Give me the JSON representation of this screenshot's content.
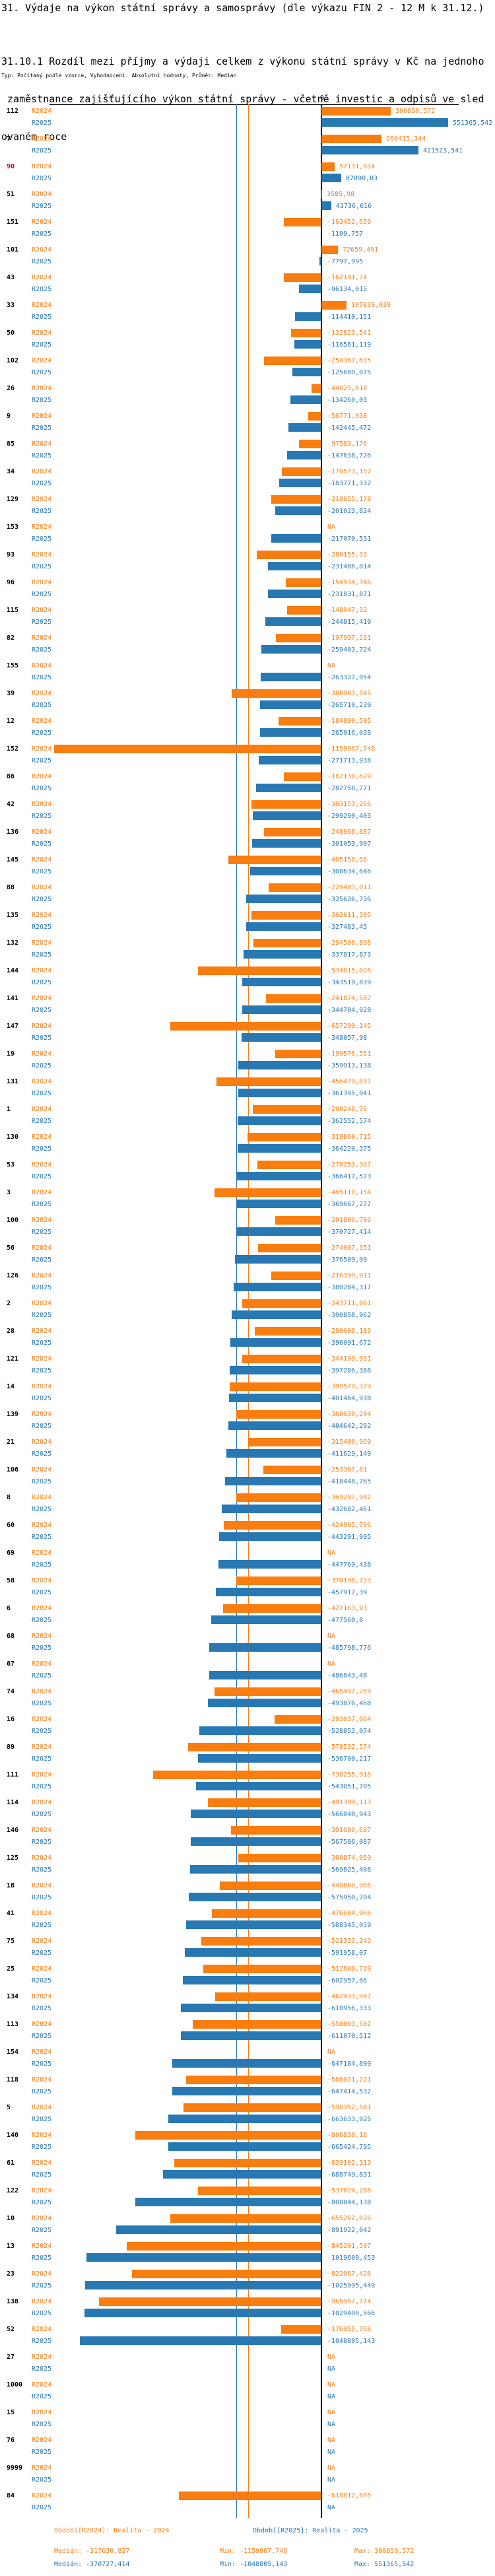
{
  "header": {
    "title": "31. Výdaje na výkon státní správy a samosprávy (dle výkazu FIN 2 - 12 M k 31.12.)",
    "subtitle_lines": [
      "31.10.1 Rozdíl mezi příjmy a výdaji celkem z výkonu státní správy v Kč na jednoho",
      " zaměstnance zajišťujícího výkon státní správy - včetně investic a odpisů ve sled",
      "ovaném roce"
    ],
    "type_line": "Typ: Počítaný podle vzorce, Vyhodnocení: Absolutní hodnoty, Průměr: Medián"
  },
  "chart_data": {
    "type": "bar",
    "orientation": "horizontal",
    "zero_tick_label": "0",
    "series": [
      {
        "name": "R2024",
        "color": "#fa7d10"
      },
      {
        "name": "R2025",
        "color": "#2878b4"
      }
    ],
    "highlight_color": "#e00000",
    "groups": [
      {
        "id": "112",
        "r2024": "300850,572",
        "r2025": "551365,542"
      },
      {
        "id": "7",
        "r2024": "260415,344",
        "r2025": "421523,541"
      },
      {
        "id": "90",
        "hl": true,
        "r2024": "57131,934",
        "r2025": "87090,83"
      },
      {
        "id": "51",
        "r2024": "3585,98",
        "r2025": "43736,616"
      },
      {
        "id": "151",
        "r2024": "-163452,659",
        "r2025": "-1109,757"
      },
      {
        "id": "101",
        "r2024": "72659,491",
        "r2025": "-7797,995"
      },
      {
        "id": "43",
        "r2024": "-162191,74",
        "r2025": "-96134,015"
      },
      {
        "id": "33",
        "r2024": "107839,039",
        "r2025": "-114410,151"
      },
      {
        "id": "50",
        "r2024": "-132823,541",
        "r2025": "-116561,119"
      },
      {
        "id": "102",
        "r2024": "-250367,635",
        "r2025": "-125680,075"
      },
      {
        "id": "26",
        "r2024": "-44025,618",
        "r2025": "-134260,03"
      },
      {
        "id": "9",
        "r2024": "-56771,038",
        "r2025": "-142445,472"
      },
      {
        "id": "85",
        "r2024": "-97583,176",
        "r2025": "-147638,726"
      },
      {
        "id": "34",
        "r2024": "-170573,152",
        "r2025": "-183771,332"
      },
      {
        "id": "129",
        "r2024": "-218855,178",
        "r2025": "-201023,824"
      },
      {
        "id": "153",
        "r2024": "NA",
        "r2025": "-217070,531"
      },
      {
        "id": "93",
        "r2024": "-280155,33",
        "r2025": "-231486,014"
      },
      {
        "id": "96",
        "r2024": "-154934,346",
        "r2025": "-231831,871"
      },
      {
        "id": "115",
        "r2024": "-148947,32",
        "r2025": "-244815,419"
      },
      {
        "id": "82",
        "r2024": "-197937,231",
        "r2025": "-259403,724"
      },
      {
        "id": "155",
        "r2024": "NA",
        "r2025": "-263327,054"
      },
      {
        "id": "39",
        "r2024": "-388983,545",
        "r2025": "-265710,239"
      },
      {
        "id": "12",
        "r2024": "-184890,505",
        "r2025": "-265916,038"
      },
      {
        "id": "152",
        "r2024": "-1159967,748",
        "r2025": "-271713,938"
      },
      {
        "id": "86",
        "r2024": "-162130,629",
        "r2025": "-282758,771"
      },
      {
        "id": "42",
        "r2024": "-303153,266",
        "r2025": "-299290,403"
      },
      {
        "id": "136",
        "r2024": "-248968,887",
        "r2025": "-301053,907"
      },
      {
        "id": "145",
        "r2024": "-405158,58",
        "r2025": "-308634,646"
      },
      {
        "id": "88",
        "r2024": "-229483,011",
        "r2025": "-325636,756"
      },
      {
        "id": "135",
        "r2024": "-303011,305",
        "r2025": "-327483,45"
      },
      {
        "id": "132",
        "r2024": "-294508,898",
        "r2025": "-337817,873"
      },
      {
        "id": "144",
        "r2024": "-534815,026",
        "r2025": "-343519,839"
      },
      {
        "id": "141",
        "r2024": "-241874,587",
        "r2025": "-344704,928"
      },
      {
        "id": "147",
        "r2024": "-657299,145",
        "r2025": "-348057,98"
      },
      {
        "id": "19",
        "r2024": "-199576,551",
        "r2025": "-359913,138"
      },
      {
        "id": "131",
        "r2024": "-456479,837",
        "r2025": "-361395,041"
      },
      {
        "id": "1",
        "r2024": "-298248,76",
        "r2025": "-362552,574"
      },
      {
        "id": "130",
        "r2024": "-319860,715",
        "r2025": "-364220,375"
      },
      {
        "id": "53",
        "r2024": "-278253,307",
        "r2025": "-366417,573"
      },
      {
        "id": "3",
        "r2024": "-465110,154",
        "r2025": "-369667,277"
      },
      {
        "id": "100",
        "r2024": "-201896,793",
        "r2025": "-370727,414"
      },
      {
        "id": "56",
        "r2024": "-274007,351",
        "r2025": "-376509,99"
      },
      {
        "id": "126",
        "r2024": "-216399,911",
        "r2025": "-380284,317"
      },
      {
        "id": "2",
        "r2024": "-343711,861",
        "r2025": "-390858,962"
      },
      {
        "id": "28",
        "r2024": "-289098,183",
        "r2025": "-396091,672"
      },
      {
        "id": "121",
        "r2024": "-344109,931",
        "r2025": "-397286,388"
      },
      {
        "id": "14",
        "r2024": "-399579,379",
        "r2025": "-401464,938"
      },
      {
        "id": "139",
        "r2024": "-368630,294",
        "r2025": "-404642,292"
      },
      {
        "id": "21",
        "r2024": "-315400,959",
        "r2025": "-411629,149"
      },
      {
        "id": "106",
        "r2024": "-253387,81",
        "r2025": "-418448,765"
      },
      {
        "id": "8",
        "r2024": "-369297,982",
        "r2025": "-432682,461"
      },
      {
        "id": "60",
        "r2024": "-424995,706",
        "r2025": "-443291,995"
      },
      {
        "id": "69",
        "r2024": "NA",
        "r2025": "-447769,438"
      },
      {
        "id": "58",
        "r2024": "-370198,733",
        "r2025": "-457917,39"
      },
      {
        "id": "6",
        "r2024": "-427163,93",
        "r2025": "-477560,8"
      },
      {
        "id": "68",
        "r2024": "NA",
        "r2025": "-485798,776"
      },
      {
        "id": "67",
        "r2024": "NA",
        "r2025": "-486843,48"
      },
      {
        "id": "74",
        "r2024": "-465497,269",
        "r2025": "-493076,468"
      },
      {
        "id": "16",
        "r2024": "-203037,664",
        "r2025": "-528853,074"
      },
      {
        "id": "89",
        "r2024": "-578532,574",
        "r2025": "-536700,217"
      },
      {
        "id": "111",
        "r2024": "-730255,916",
        "r2025": "-543051,705"
      },
      {
        "id": "114",
        "r2024": "-491399,113",
        "r2025": "-566040,943"
      },
      {
        "id": "146",
        "r2024": "-391699,687",
        "r2025": "-567586,087"
      },
      {
        "id": "125",
        "r2024": "-360874,059",
        "r2025": "-569825,408"
      },
      {
        "id": "18",
        "r2024": "-440800,066",
        "r2025": "-575950,704"
      },
      {
        "id": "41",
        "r2024": "-476684,966",
        "r2025": "-588345,059"
      },
      {
        "id": "75",
        "r2024": "-521353,343",
        "r2025": "-591958,07"
      },
      {
        "id": "25",
        "r2024": "-512609,739",
        "r2025": "-602957,86"
      },
      {
        "id": "134",
        "r2024": "-462433,947",
        "r2025": "-610956,333"
      },
      {
        "id": "113",
        "r2024": "-558893,502",
        "r2025": "-611070,512"
      },
      {
        "id": "154",
        "r2024": "NA",
        "r2025": "-647184,899"
      },
      {
        "id": "118",
        "r2024": "-586021,221",
        "r2025": "-647414,532"
      },
      {
        "id": "5",
        "r2024": "-598352,581",
        "r2025": "-663633,925"
      },
      {
        "id": "140",
        "r2024": "-806830,18",
        "r2025": "-665424,795"
      },
      {
        "id": "61",
        "r2024": "-639102,313",
        "r2025": "-688749,831"
      },
      {
        "id": "122",
        "r2024": "-537024,288",
        "r2025": "-808844,138"
      },
      {
        "id": "10",
        "r2024": "-655262,026",
        "r2025": "-891922,042"
      },
      {
        "id": "13",
        "r2024": "-845201,507",
        "r2025": "-1019609,453"
      },
      {
        "id": "23",
        "r2024": "-822967,426",
        "r2025": "-1025995,449"
      },
      {
        "id": "138",
        "r2024": "-965957,774",
        "r2025": "-1029400,566"
      },
      {
        "id": "52",
        "r2024": "-176055,768",
        "r2025": "-1048805,143"
      },
      {
        "id": "27",
        "r2024": "NA",
        "r2025": "NA"
      },
      {
        "id": "1000",
        "r2024": "NA",
        "r2025": "NA"
      },
      {
        "id": "15",
        "r2024": "NA",
        "r2025": "NA"
      },
      {
        "id": "76",
        "r2024": "NA",
        "r2025": "NA"
      },
      {
        "id": "9999",
        "r2024": "NA",
        "r2025": "NA"
      },
      {
        "id": "84",
        "r2024": "-618812,605",
        "r2025": "NA"
      }
    ]
  },
  "legend": {
    "r2024": {
      "period": "Období[R2024]: Realita - 2024",
      "median": "Medián: -317630,837",
      "min": "Min: -1159967,748",
      "max": "Max: 300850,572"
    },
    "r2025": {
      "period": "Období[R2025]: Realita - 2025",
      "median": "Medián: -370727,414",
      "min": "Min: -1048805,143",
      "max": "Max: 551365,542"
    }
  }
}
